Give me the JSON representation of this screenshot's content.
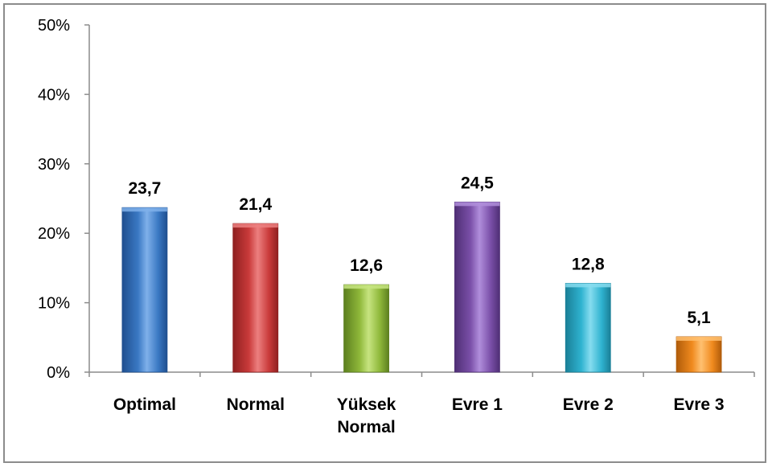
{
  "chart_data": {
    "type": "bar",
    "title": "",
    "xlabel": "",
    "ylabel": "",
    "categories": [
      [
        "Optimal"
      ],
      [
        "Normal"
      ],
      [
        "Yüksek",
        "Normal"
      ],
      [
        "Evre 1"
      ],
      [
        "Evre 2"
      ],
      [
        "Evre 3"
      ]
    ],
    "values": [
      23.7,
      21.4,
      12.6,
      24.5,
      12.8,
      5.1
    ],
    "data_labels": [
      "23,7",
      "21,4",
      "12,6",
      "24,5",
      "12,8",
      "5,1"
    ],
    "ylim": [
      0,
      50
    ],
    "yticks": [
      0,
      10,
      20,
      30,
      40,
      50
    ],
    "ytick_labels": [
      "0%",
      "10%",
      "20%",
      "30%",
      "40%",
      "50%"
    ],
    "colors": [
      {
        "base": "#3a78c3",
        "light": "#7fb0ea",
        "dark": "#1f4f8f"
      },
      {
        "base": "#c93a3a",
        "light": "#ec8080",
        "dark": "#8f2020"
      },
      {
        "base": "#8fb83a",
        "light": "#c6e480",
        "dark": "#5c7f1f"
      },
      {
        "base": "#7a4fa8",
        "light": "#b08edb",
        "dark": "#4f2f75"
      },
      {
        "base": "#2fb3d0",
        "light": "#86dcef",
        "dark": "#1a7f97"
      },
      {
        "base": "#f08a1e",
        "light": "#ffc070",
        "dark": "#b05c0a"
      }
    ],
    "grid": false,
    "legend": "none"
  }
}
